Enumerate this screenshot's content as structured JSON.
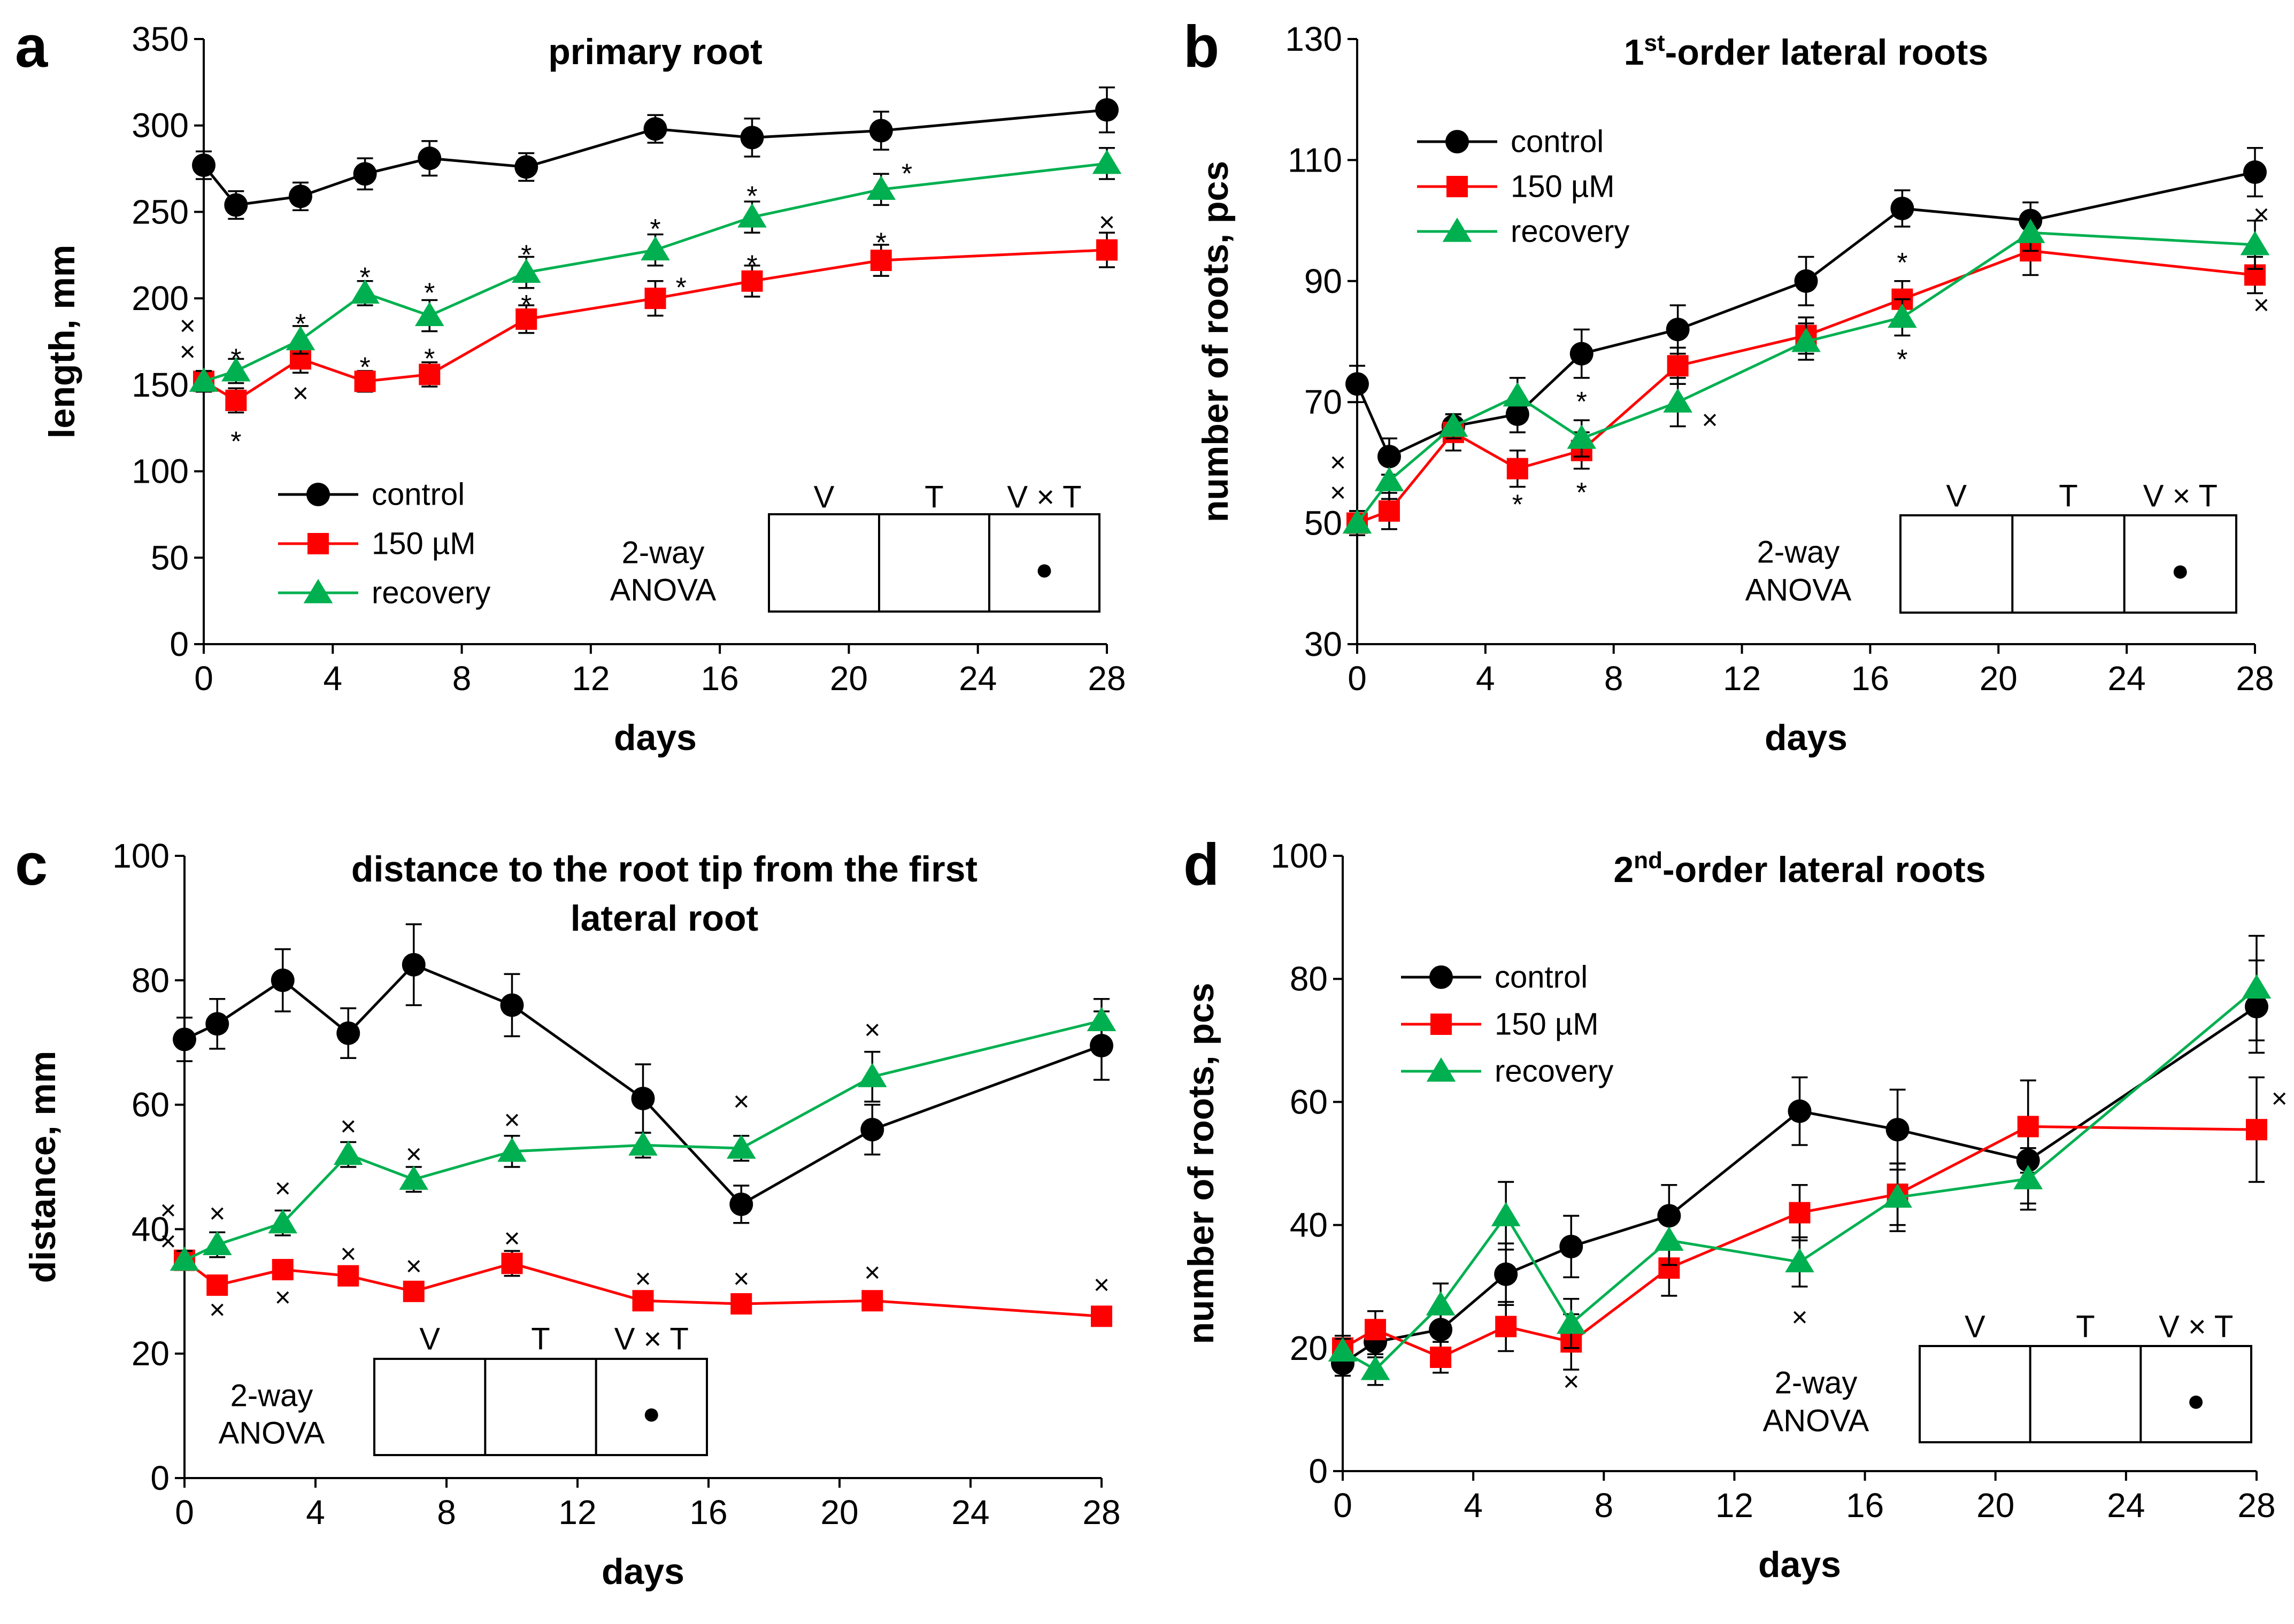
{
  "colors": {
    "control": "#000000",
    "stress": "#ff0000",
    "recovery": "#00b050"
  },
  "chart_data": [
    {
      "panel_label": "a",
      "type": "line",
      "title": "primary root",
      "xlabel": "days",
      "ylabel": "length, mm",
      "xlim": [
        0,
        28
      ],
      "ylim": [
        0,
        350
      ],
      "xticks": [
        0,
        4,
        8,
        12,
        16,
        20,
        24,
        28
      ],
      "yticks": [
        0,
        50,
        100,
        150,
        200,
        250,
        300,
        350
      ],
      "x": [
        0,
        1,
        3,
        5,
        7,
        10,
        14,
        17,
        21,
        28
      ],
      "series": [
        {
          "name": "control",
          "key": "control",
          "marker": "circle",
          "values": [
            277,
            254,
            259,
            272,
            281,
            276,
            298,
            293,
            297,
            309
          ],
          "errors": [
            8,
            8,
            8,
            9,
            10,
            8,
            8,
            11,
            11,
            13
          ]
        },
        {
          "name": "150 µM",
          "key": "stress",
          "marker": "square",
          "values": [
            152,
            141,
            165,
            152,
            156,
            188,
            200,
            210,
            222,
            228
          ],
          "errors": [
            6,
            7,
            8,
            6,
            7,
            8,
            10,
            9,
            9,
            10
          ]
        },
        {
          "name": "recovery",
          "key": "recovery",
          "marker": "triangle",
          "values": [
            152,
            158,
            176,
            203,
            190,
            215,
            228,
            247,
            263,
            278
          ],
          "errors": [
            6,
            7,
            8,
            7,
            9,
            9,
            9,
            9,
            9,
            9
          ]
        }
      ],
      "annotations": [
        {
          "text": "×",
          "x": -0.5,
          "y": 184
        },
        {
          "text": "×",
          "x": -0.5,
          "y": 169
        },
        {
          "text": "*",
          "x": 1,
          "y": 165
        },
        {
          "text": "*",
          "x": 1,
          "y": 117
        },
        {
          "text": "*",
          "x": 3,
          "y": 185
        },
        {
          "text": "×",
          "x": 3,
          "y": 145
        },
        {
          "text": "*",
          "x": 5,
          "y": 212
        },
        {
          "text": "*",
          "x": 5,
          "y": 160
        },
        {
          "text": "*",
          "x": 7,
          "y": 203
        },
        {
          "text": "*",
          "x": 7,
          "y": 165
        },
        {
          "text": "*",
          "x": 10,
          "y": 225
        },
        {
          "text": "*",
          "x": 10,
          "y": 196
        },
        {
          "text": "*",
          "x": 14,
          "y": 240
        },
        {
          "text": "*",
          "x": 14.8,
          "y": 206
        },
        {
          "text": "*",
          "x": 17,
          "y": 259
        },
        {
          "text": "*",
          "x": 17,
          "y": 219
        },
        {
          "text": "*",
          "x": 21.8,
          "y": 272
        },
        {
          "text": "*",
          "x": 21,
          "y": 232
        },
        {
          "text": "×",
          "x": 28,
          "y": 244
        }
      ],
      "legend": {
        "position": "lower-left",
        "entries": [
          "control",
          "150 µM",
          "recovery"
        ]
      },
      "anova": {
        "title_line1": "2-way",
        "title_line2": "ANOVA",
        "headers": [
          "V",
          "T",
          "V × T"
        ],
        "marks": [
          "",
          "",
          "●"
        ]
      }
    },
    {
      "panel_label": "b",
      "type": "line",
      "title_main": "1",
      "title_sup": "st",
      "title_rest": "-order lateral roots",
      "xlabel": "days",
      "ylabel": "number of roots, pcs",
      "xlim": [
        0,
        28
      ],
      "ylim": [
        30,
        130
      ],
      "xticks": [
        0,
        4,
        8,
        12,
        16,
        20,
        24,
        28
      ],
      "yticks": [
        30,
        50,
        70,
        90,
        110,
        130
      ],
      "x": [
        0,
        1,
        3,
        5,
        7,
        10,
        14,
        17,
        21,
        28
      ],
      "series": [
        {
          "name": "control",
          "key": "control",
          "marker": "circle",
          "values": [
            73,
            61,
            66,
            68,
            78,
            82,
            90,
            102,
            100,
            108
          ],
          "errors": [
            3,
            3,
            2,
            3,
            4,
            4,
            4,
            3,
            3,
            4
          ]
        },
        {
          "name": "150 µM",
          "key": "stress",
          "marker": "square",
          "values": [
            50,
            52,
            65,
            59,
            62,
            76,
            81,
            87,
            95,
            91
          ],
          "errors": [
            2,
            3,
            3,
            3,
            3,
            3,
            3,
            3,
            4,
            3
          ]
        },
        {
          "name": "recovery",
          "key": "recovery",
          "marker": "triangle",
          "values": [
            50,
            57,
            66,
            71,
            64,
            70,
            80,
            84,
            98,
            96
          ],
          "errors": [
            2,
            3,
            2,
            3,
            3,
            4,
            3,
            3,
            3,
            4
          ]
        }
      ],
      "annotations": [
        {
          "text": "×",
          "x": -0.6,
          "y": 60
        },
        {
          "text": "×",
          "x": -0.6,
          "y": 55
        },
        {
          "text": "*",
          "x": 5,
          "y": 53
        },
        {
          "text": "*",
          "x": 7,
          "y": 70
        },
        {
          "text": "*",
          "x": 7,
          "y": 55
        },
        {
          "text": "×",
          "x": 11,
          "y": 67
        },
        {
          "text": "*",
          "x": 17,
          "y": 93
        },
        {
          "text": "*",
          "x": 17,
          "y": 77
        },
        {
          "text": "×",
          "x": 28.2,
          "y": 101
        },
        {
          "text": "×",
          "x": 28.2,
          "y": 86
        }
      ],
      "legend": {
        "position": "top-left",
        "entries": [
          "control",
          "150 µM",
          "recovery"
        ]
      },
      "anova": {
        "title_line1": "2-way",
        "title_line2": "ANOVA",
        "headers": [
          "V",
          "T",
          "V × T"
        ],
        "marks": [
          "",
          "",
          "●"
        ]
      }
    },
    {
      "panel_label": "c",
      "type": "line",
      "title_line1": "distance to the root tip from the first",
      "title_line2": "lateral root",
      "xlabel": "days",
      "ylabel": "distance, mm",
      "xlim": [
        0,
        28
      ],
      "ylim": [
        0,
        100
      ],
      "xticks": [
        0,
        4,
        8,
        12,
        16,
        20,
        24,
        28
      ],
      "yticks": [
        0,
        20,
        40,
        60,
        80,
        100
      ],
      "x": [
        0,
        1,
        3,
        5,
        7,
        10,
        14,
        17,
        21,
        28
      ],
      "series": [
        {
          "name": "control",
          "key": "control",
          "marker": "circle",
          "values": [
            70.5,
            73,
            80,
            71.5,
            82.5,
            76,
            61,
            44,
            56,
            69.5
          ],
          "errors": [
            3.5,
            4,
            5,
            4,
            6.5,
            5,
            5.5,
            3,
            4,
            5.5
          ]
        },
        {
          "name": "150 µM",
          "key": "stress",
          "marker": "square",
          "values": [
            35,
            31,
            33.5,
            32.5,
            30,
            34.5,
            28.5,
            28,
            28.5,
            26
          ],
          "errors": [
            1.5,
            1.5,
            1.5,
            1.5,
            1.5,
            2,
            1.5,
            1,
            1,
            1
          ]
        },
        {
          "name": "recovery",
          "key": "recovery",
          "marker": "triangle",
          "values": [
            35,
            37.5,
            41,
            52,
            48,
            52.5,
            53.5,
            53,
            64.5,
            73.5
          ],
          "errors": [
            1.5,
            2,
            2,
            2,
            2,
            2.5,
            2,
            2,
            4,
            3.5
          ]
        }
      ],
      "annotations": [
        {
          "text": "×",
          "x": -0.5,
          "y": 43
        },
        {
          "text": "×",
          "x": -0.5,
          "y": 38
        },
        {
          "text": "×",
          "x": 1,
          "y": 42.5
        },
        {
          "text": "×",
          "x": 1,
          "y": 27
        },
        {
          "text": "×",
          "x": 3,
          "y": 46.5
        },
        {
          "text": "×",
          "x": 3,
          "y": 29
        },
        {
          "text": "×",
          "x": 5,
          "y": 56.5
        },
        {
          "text": "×",
          "x": 5,
          "y": 36
        },
        {
          "text": "×",
          "x": 7,
          "y": 52
        },
        {
          "text": "×",
          "x": 7,
          "y": 34
        },
        {
          "text": "×",
          "x": 10,
          "y": 57.5
        },
        {
          "text": "×",
          "x": 10,
          "y": 38.5
        },
        {
          "text": "×",
          "x": 14,
          "y": 32
        },
        {
          "text": "×",
          "x": 17,
          "y": 60.5
        },
        {
          "text": "×",
          "x": 17,
          "y": 32
        },
        {
          "text": "×",
          "x": 21,
          "y": 72
        },
        {
          "text": "×",
          "x": 21,
          "y": 33
        },
        {
          "text": "×",
          "x": 28,
          "y": 31
        }
      ],
      "legend": null,
      "anova": {
        "title_line1": "2-way",
        "title_line2": "ANOVA",
        "headers": [
          "V",
          "T",
          "V × T"
        ],
        "marks": [
          "",
          "",
          "●"
        ]
      }
    },
    {
      "panel_label": "d",
      "type": "line",
      "title_main": "2",
      "title_sup": "nd",
      "title_rest": "-order lateral roots",
      "xlabel": "days",
      "ylabel": "number of roots, pcs",
      "xlim": [
        0,
        28
      ],
      "ylim": [
        0,
        100
      ],
      "xticks": [
        0,
        4,
        8,
        12,
        16,
        20,
        24,
        28
      ],
      "yticks": [
        0,
        20,
        40,
        60,
        80,
        100
      ],
      "x": [
        0,
        1,
        3,
        5,
        7,
        10,
        14,
        17,
        21,
        28
      ],
      "series": [
        {
          "name": "control",
          "key": "control",
          "marker": "circle",
          "values": [
            17.5,
            21,
            23,
            32,
            36.5,
            41.5,
            58.5,
            55.5,
            50.5,
            75.5
          ],
          "errors": [
            2,
            2.5,
            3,
            5,
            5,
            5,
            5.5,
            6.5,
            7,
            7.5
          ]
        },
        {
          "name": "150 µM",
          "key": "stress",
          "marker": "square",
          "values": [
            20,
            23,
            18.5,
            23.5,
            21,
            33,
            42,
            45,
            56,
            55.5
          ],
          "errors": [
            2,
            3,
            2.5,
            4,
            4.5,
            4.5,
            4.5,
            5,
            7.5,
            8.5
          ]
        },
        {
          "name": "recovery",
          "key": "recovery",
          "marker": "triangle",
          "values": [
            19.5,
            16.5,
            27,
            41.5,
            24,
            37.5,
            34,
            44.5,
            47.5,
            78.5
          ],
          "errors": [
            2,
            2.5,
            3.5,
            5.5,
            4,
            4,
            4,
            5.5,
            5,
            8.5
          ]
        }
      ],
      "annotations": [
        {
          "text": "×",
          "x": 14,
          "y": 25
        },
        {
          "text": "×",
          "x": 7,
          "y": 14.5
        },
        {
          "text": "×",
          "x": 28.7,
          "y": 60.5
        }
      ],
      "legend": {
        "position": "top-left",
        "entries": [
          "control",
          "150 µM",
          "recovery"
        ]
      },
      "anova": {
        "title_line1": "2-way",
        "title_line2": "ANOVA",
        "headers": [
          "V",
          "T",
          "V × T"
        ],
        "marks": [
          "",
          "",
          "●"
        ]
      }
    }
  ]
}
